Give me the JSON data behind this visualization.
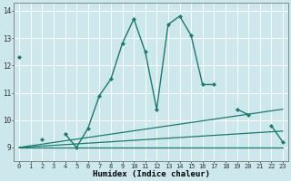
{
  "xlabel": "Humidex (Indice chaleur)",
  "bg_color": "#cce8ec",
  "grid_color": "#ffffff",
  "line_color": "#1a7a6e",
  "xlim": [
    -0.5,
    23.5
  ],
  "ylim": [
    8.5,
    14.3
  ],
  "yticks": [
    9,
    10,
    11,
    12,
    13,
    14
  ],
  "xticks": [
    0,
    1,
    2,
    3,
    4,
    5,
    6,
    7,
    8,
    9,
    10,
    11,
    12,
    13,
    14,
    15,
    16,
    17,
    18,
    19,
    20,
    21,
    22,
    23
  ],
  "main_series": {
    "x": [
      0,
      1,
      2,
      3,
      4,
      5,
      6,
      7,
      8,
      9,
      10,
      11,
      12,
      13,
      14,
      15,
      16,
      17,
      18,
      19,
      20,
      21,
      22,
      23
    ],
    "y": [
      12.3,
      null,
      9.3,
      null,
      9.5,
      9.0,
      9.7,
      10.9,
      11.5,
      12.8,
      13.7,
      12.5,
      10.4,
      13.5,
      13.8,
      13.1,
      11.3,
      11.3,
      null,
      10.4,
      10.2,
      null,
      9.8,
      9.2
    ]
  },
  "trend_lines": [
    {
      "x": [
        0,
        23
      ],
      "y": [
        9.0,
        9.0
      ]
    },
    {
      "x": [
        0,
        23
      ],
      "y": [
        9.0,
        9.6
      ]
    },
    {
      "x": [
        0,
        23
      ],
      "y": [
        9.0,
        10.4
      ]
    }
  ]
}
